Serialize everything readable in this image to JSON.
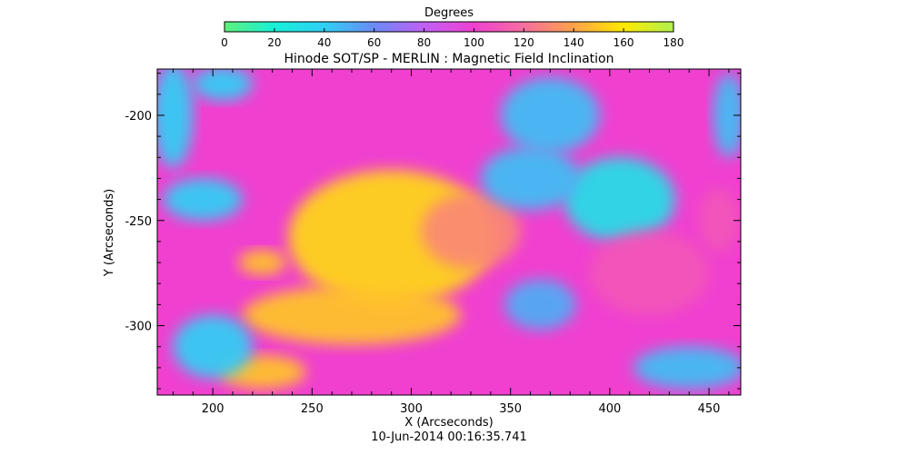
{
  "chart_data": {
    "type": "heatmap",
    "title": "Hinode SOT/SP - MERLIN : Magnetic Field Inclination",
    "xlabel": "X (Arcseconds)",
    "ylabel": "Y (Arcseconds)",
    "timestamp": "10-Jun-2014 00:16:35.741",
    "xlim": [
      172,
      466
    ],
    "ylim": [
      -333,
      -178
    ],
    "x_ticks": [
      "200",
      "250",
      "300",
      "350",
      "400",
      "450"
    ],
    "y_ticks": [
      "-200",
      "-250",
      "-300"
    ],
    "x_tick_values": [
      200,
      250,
      300,
      350,
      400,
      450
    ],
    "y_tick_values": [
      -200,
      -250,
      -300
    ],
    "colorbar": {
      "label": "Degrees",
      "range": [
        0,
        180
      ],
      "ticks": [
        "0",
        "20",
        "40",
        "60",
        "80",
        "100",
        "120",
        "140",
        "160",
        "180"
      ],
      "tick_values": [
        0,
        20,
        40,
        60,
        80,
        100,
        120,
        140,
        160,
        180
      ],
      "stops": [
        {
          "value": 0,
          "color": "#5ff07a"
        },
        {
          "value": 20,
          "color": "#18f0d8"
        },
        {
          "value": 40,
          "color": "#2fd0f5"
        },
        {
          "value": 60,
          "color": "#6a8af5"
        },
        {
          "value": 80,
          "color": "#c060f5"
        },
        {
          "value": 100,
          "color": "#f040d0"
        },
        {
          "value": 120,
          "color": "#f56ea0"
        },
        {
          "value": 140,
          "color": "#ffa24a"
        },
        {
          "value": 160,
          "color": "#ffea00"
        },
        {
          "value": 180,
          "color": "#b0f050"
        }
      ]
    },
    "background_value": 100,
    "features": [
      {
        "x": 290,
        "y": -258,
        "rx": 52,
        "ry": 32,
        "value": 155
      },
      {
        "x": 270,
        "y": -295,
        "rx": 55,
        "ry": 14,
        "value": 150
      },
      {
        "x": 225,
        "y": -322,
        "rx": 22,
        "ry": 8,
        "value": 150
      },
      {
        "x": 225,
        "y": -270,
        "rx": 12,
        "ry": 6,
        "value": 150
      },
      {
        "x": 330,
        "y": -255,
        "rx": 25,
        "ry": 18,
        "value": 130
      },
      {
        "x": 405,
        "y": -240,
        "rx": 28,
        "ry": 20,
        "value": 30
      },
      {
        "x": 360,
        "y": -230,
        "rx": 25,
        "ry": 15,
        "value": 45
      },
      {
        "x": 370,
        "y": -200,
        "rx": 25,
        "ry": 18,
        "value": 45
      },
      {
        "x": 365,
        "y": -290,
        "rx": 18,
        "ry": 12,
        "value": 50
      },
      {
        "x": 420,
        "y": -275,
        "rx": 30,
        "ry": 20,
        "value": 110
      },
      {
        "x": 440,
        "y": -320,
        "rx": 28,
        "ry": 10,
        "value": 45
      },
      {
        "x": 200,
        "y": -310,
        "rx": 20,
        "ry": 15,
        "value": 40
      },
      {
        "x": 195,
        "y": -240,
        "rx": 20,
        "ry": 10,
        "value": 40
      },
      {
        "x": 180,
        "y": -200,
        "rx": 10,
        "ry": 25,
        "value": 40
      },
      {
        "x": 205,
        "y": -185,
        "rx": 15,
        "ry": 8,
        "value": 40
      },
      {
        "x": 460,
        "y": -200,
        "rx": 8,
        "ry": 20,
        "value": 45
      },
      {
        "x": 455,
        "y": -250,
        "rx": 10,
        "ry": 15,
        "value": 110
      }
    ]
  }
}
